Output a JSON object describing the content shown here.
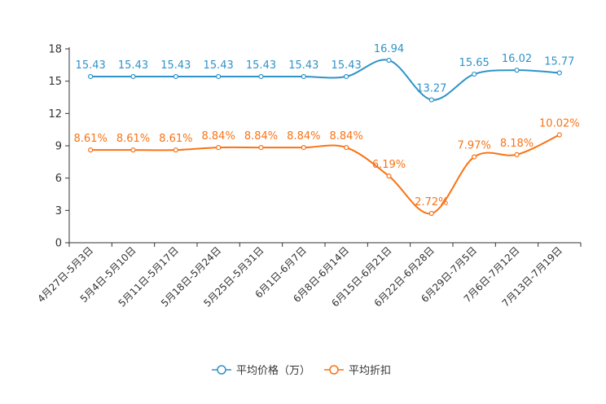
{
  "chart_data": {
    "type": "line",
    "title": "",
    "xlabel": "",
    "ylabel": "",
    "ylim": [
      0,
      18
    ],
    "yticks": [
      "0",
      "3",
      "6",
      "9",
      "12",
      "15",
      "18"
    ],
    "grid": false,
    "legend_position": "bottom-center",
    "categories": [
      "4月27日-5月3日",
      "5月4日-5月10日",
      "5月11日-5月17日",
      "5月18日-5月24日",
      "5月25日-5月31日",
      "6月1日-6月7日",
      "6月8日-6月14日",
      "6月15日-6月21日",
      "6月22日-6月28日",
      "6月29日-7月5日",
      "7月6日-7月12日",
      "7月13日-7月19日"
    ],
    "series": [
      {
        "name": "平均价格（万）",
        "color": "#2e93c9",
        "values": [
          15.43,
          15.43,
          15.43,
          15.43,
          15.43,
          15.43,
          15.43,
          16.94,
          13.27,
          15.65,
          16.02,
          15.77
        ],
        "labels": [
          "15.43",
          "15.43",
          "15.43",
          "15.43",
          "15.43",
          "15.43",
          "15.43",
          "16.94",
          "13.27",
          "15.65",
          "16.02",
          "15.77"
        ]
      },
      {
        "name": "平均折扣",
        "color": "#f97315",
        "values": [
          8.61,
          8.61,
          8.61,
          8.84,
          8.84,
          8.84,
          8.84,
          6.19,
          2.72,
          7.97,
          8.18,
          10.02
        ],
        "labels": [
          "8.61%",
          "8.61%",
          "8.61%",
          "8.84%",
          "8.84%",
          "8.84%",
          "8.84%",
          "6.19%",
          "2.72%",
          "7.97%",
          "8.18%",
          "10.02%"
        ]
      }
    ]
  }
}
